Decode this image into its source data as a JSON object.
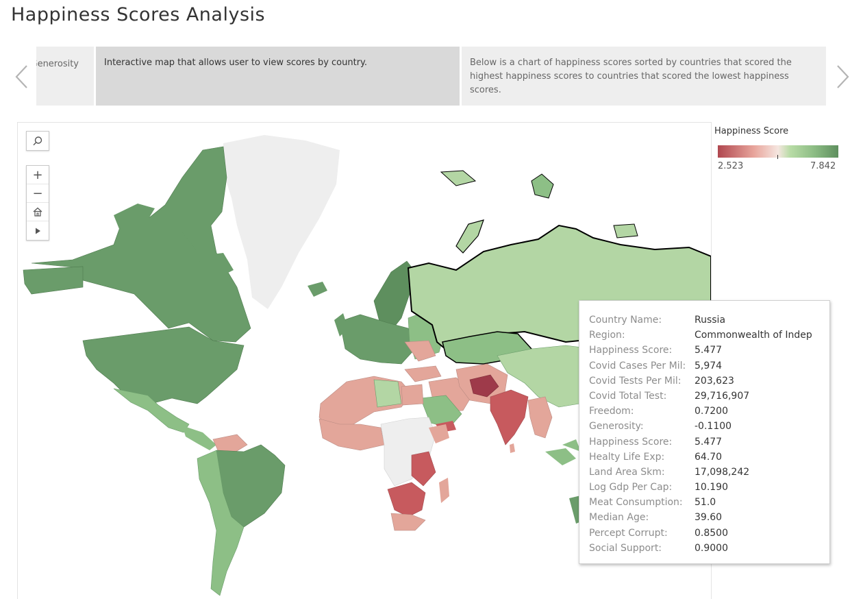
{
  "page": {
    "title": "Happiness Scores Analysis"
  },
  "story": {
    "points": [
      {
        "text": "Generosity"
      },
      {
        "text": "Interactive map that allows user to view scores by country."
      },
      {
        "text": "Below is a chart of happiness scores sorted by countries that scored the highest happiness scores to countries that scored the lowest happiness scores."
      }
    ]
  },
  "legend": {
    "title": "Happiness Score",
    "min": "2.523",
    "max": "7.842",
    "colors": [
      "#b0474f",
      "#e8a59c",
      "#f5e6e0",
      "#b8dca6",
      "#5e8f5e"
    ]
  },
  "map_tools": {
    "search_icon": "search-icon",
    "zoom_in": "+",
    "zoom_out": "−",
    "home_icon": "home-icon",
    "play_icon": "play-icon"
  },
  "tooltip": {
    "rows": [
      {
        "key": "Country Name:",
        "value": "Russia"
      },
      {
        "key": "Region:",
        "value": "Commonwealth of Indep"
      },
      {
        "key": "Happiness Score:",
        "value": "5.477"
      },
      {
        "key": "Covid Cases Per Mil:",
        "value": "5,974"
      },
      {
        "key": "Covid Tests Per Mil:",
        "value": "203,623"
      },
      {
        "key": "Covid Total Test:",
        "value": "29,716,907"
      },
      {
        "key": "Freedom:",
        "value": "0.7200"
      },
      {
        "key": "Generosity:",
        "value": "-0.1100"
      },
      {
        "key": "Happiness Score:",
        "value": "5.477"
      },
      {
        "key": "Healty Life Exp:",
        "value": "64.70"
      },
      {
        "key": "Land Area Skm:",
        "value": "17,098,242"
      },
      {
        "key": "Log Gdp Per Cap:",
        "value": "10.190"
      },
      {
        "key": "Meat Consumption:",
        "value": "51.0"
      },
      {
        "key": "Median Age:",
        "value": "39.60"
      },
      {
        "key": "Percept Corrupt:",
        "value": "0.8500"
      },
      {
        "key": "Social Support:",
        "value": "0.9000"
      }
    ]
  },
  "map_colors": {
    "no_data": "#eeeeee",
    "high": "#6a9c6a",
    "mid_high": "#8dbf86",
    "mid": "#b3d6a4",
    "low": "#e3a69a",
    "very_low": "#c75a5e",
    "lowest": "#9e3a4a",
    "selected_border": "#000000"
  }
}
